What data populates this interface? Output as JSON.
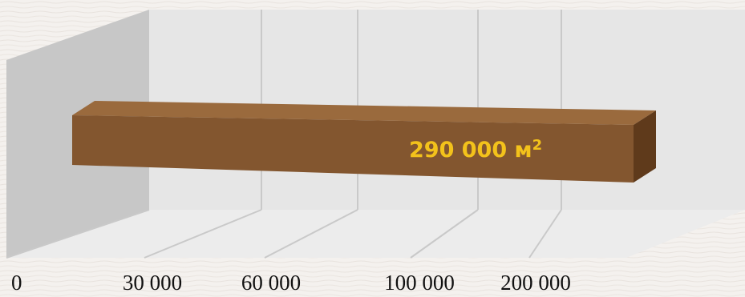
{
  "chart_data": {
    "type": "bar",
    "orientation": "horizontal",
    "style": "3d",
    "title": "",
    "xlabel": "",
    "ylabel": "",
    "x_ticks": [
      "0",
      "30 000",
      "60 000",
      "100 000",
      "200 000"
    ],
    "series": [
      {
        "values": [
          290000
        ]
      }
    ],
    "data_labels": [
      {
        "text": "290 000 м",
        "superscript": "2"
      }
    ],
    "legend": "none",
    "grid": true,
    "colors": {
      "bar_front": "#83562f",
      "bar_top": "#9a6a3d",
      "bar_side": "#5f3a1b",
      "label": "#f3c21b",
      "back_wall": "#e6e6e6",
      "side_wall": "#c7c7c7",
      "floor": "#ececec",
      "gridline": "#c9c9c9"
    }
  }
}
